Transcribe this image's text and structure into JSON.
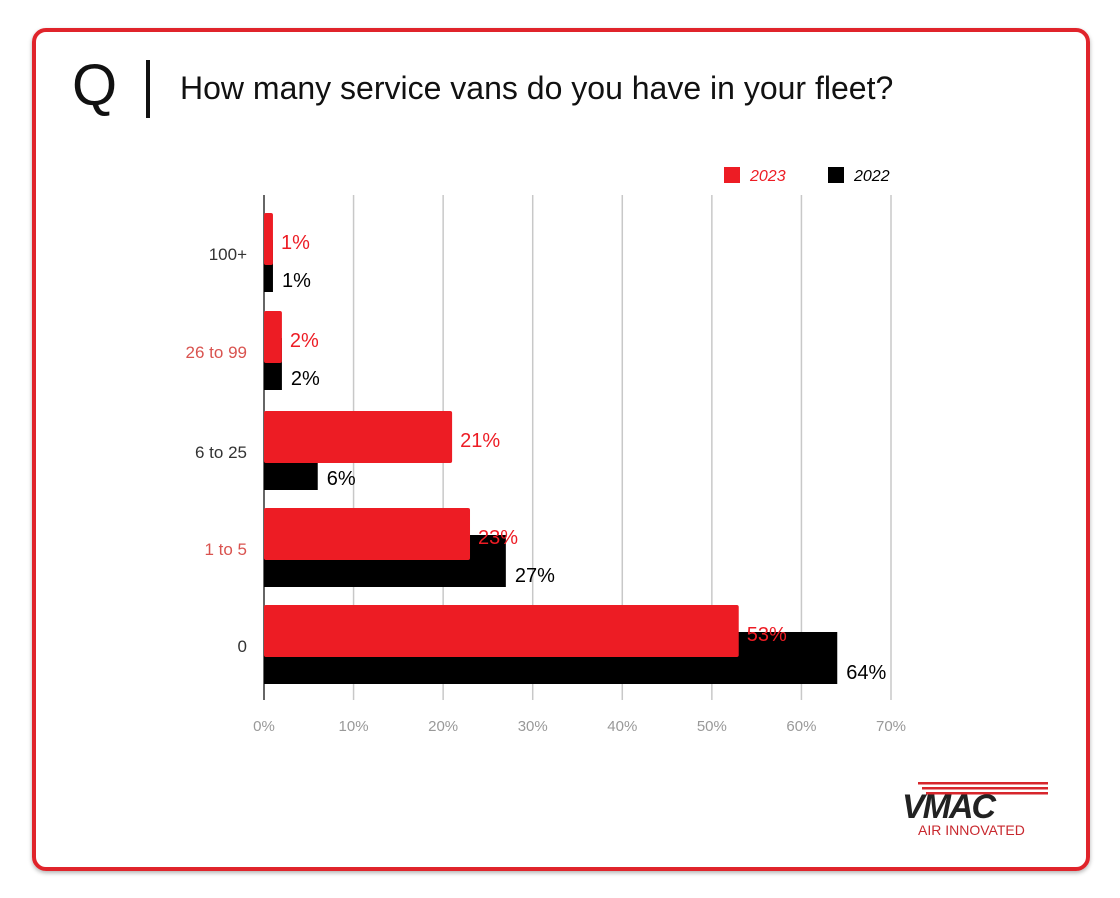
{
  "header": {
    "q_mark": "Q",
    "question": "How many service vans do you have in your fleet?"
  },
  "logo": {
    "brand": "VMAC",
    "tagline": "AIR INNOVATED"
  },
  "chart_data": {
    "type": "bar",
    "orientation": "horizontal",
    "categories": [
      "100+",
      "26 to 99",
      "6 to 25",
      "1 to 5",
      "0"
    ],
    "category_colors": [
      "#333333",
      "#d9534f",
      "#333333",
      "#d9534f",
      "#333333"
    ],
    "series": [
      {
        "name": "2023",
        "color": "#ed1c24",
        "values": [
          1,
          2,
          21,
          23,
          53
        ],
        "labels": [
          "1%",
          "2%",
          "21%",
          "23%",
          "53%"
        ]
      },
      {
        "name": "2022",
        "color": "#000000",
        "values": [
          1,
          2,
          6,
          27,
          64
        ],
        "labels": [
          "1%",
          "2%",
          "6%",
          "27%",
          "64%"
        ]
      }
    ],
    "xlim": [
      0,
      70
    ],
    "xticks": [
      "0%",
      "10%",
      "20%",
      "30%",
      "40%",
      "50%",
      "60%",
      "70%"
    ],
    "grid": "vertical",
    "legend": "top-right"
  }
}
